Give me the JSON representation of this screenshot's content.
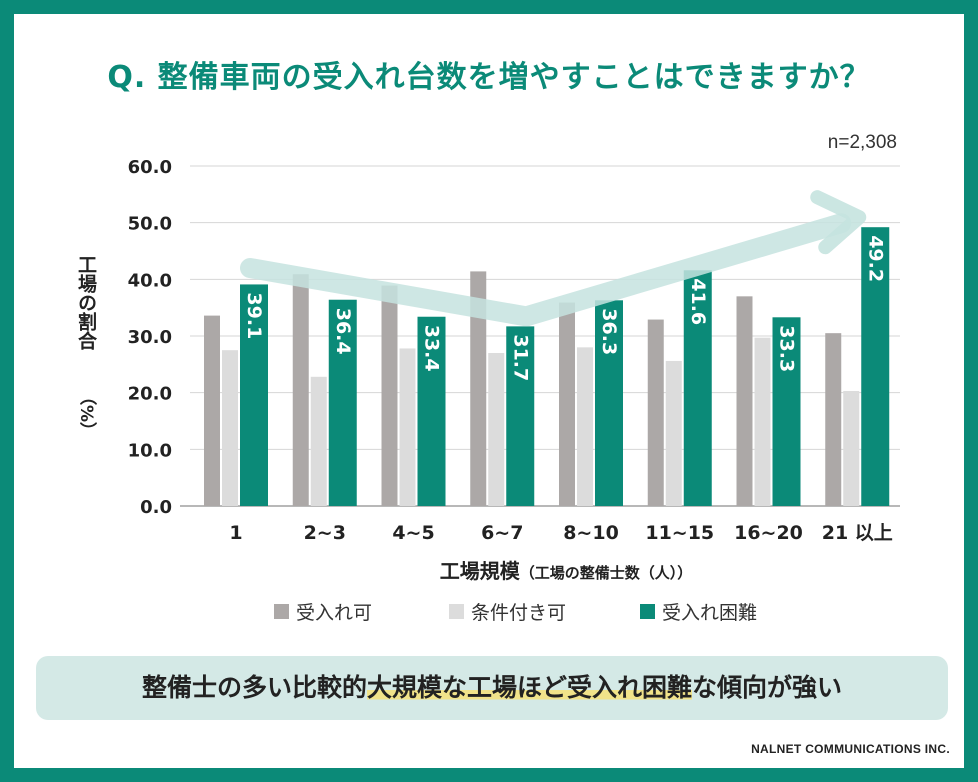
{
  "title": "Q. 整備車両の受入れ台数を増やすことはできますか？",
  "summary": {
    "before": "整備士の多い比較的",
    "highlight": "大規模な工場ほど受入れ困難",
    "after": "な傾向が強い"
  },
  "credit": "NALNET COMMUNICATIONS INC.",
  "colors": {
    "frame": "#0b8a78",
    "accept": "#aca8a7",
    "conditional": "#dcdcdc",
    "difficult": "#0b8a78",
    "trend_arrow": "#c5e3df",
    "summary_bg": "#d4e9e6",
    "highlight": "#f1e38a"
  },
  "chart_data": {
    "type": "bar",
    "annotation": "n=2,308",
    "xlabel": "工場規模",
    "xlabel_sub": "（工場の整備士数（人））",
    "ylabel": "工場の割合",
    "ylabel_unit": "（%）",
    "ylim": [
      0,
      60
    ],
    "yticks": [
      "0.0",
      "10.0",
      "20.0",
      "30.0",
      "40.0",
      "50.0",
      "60.0"
    ],
    "grid": true,
    "legend_position": "bottom",
    "categories": [
      "1",
      "2~3",
      "4~5",
      "6~7",
      "8~10",
      "11~15",
      "16~20",
      "21 以上"
    ],
    "series": [
      {
        "name": "受入れ可",
        "values": [
          33.6,
          40.9,
          38.9,
          41.4,
          35.9,
          32.9,
          37.0,
          30.5
        ]
      },
      {
        "name": "条件付き可",
        "values": [
          27.5,
          22.8,
          27.8,
          27.0,
          28.0,
          25.6,
          29.7,
          20.3
        ]
      },
      {
        "name": "受入れ困難",
        "values": [
          39.1,
          36.4,
          33.4,
          31.7,
          36.3,
          41.6,
          33.3,
          49.2
        ]
      }
    ],
    "data_labels": [
      "39.1",
      "36.4",
      "33.4",
      "31.7",
      "36.3",
      "41.6",
      "33.3",
      "49.2"
    ]
  }
}
